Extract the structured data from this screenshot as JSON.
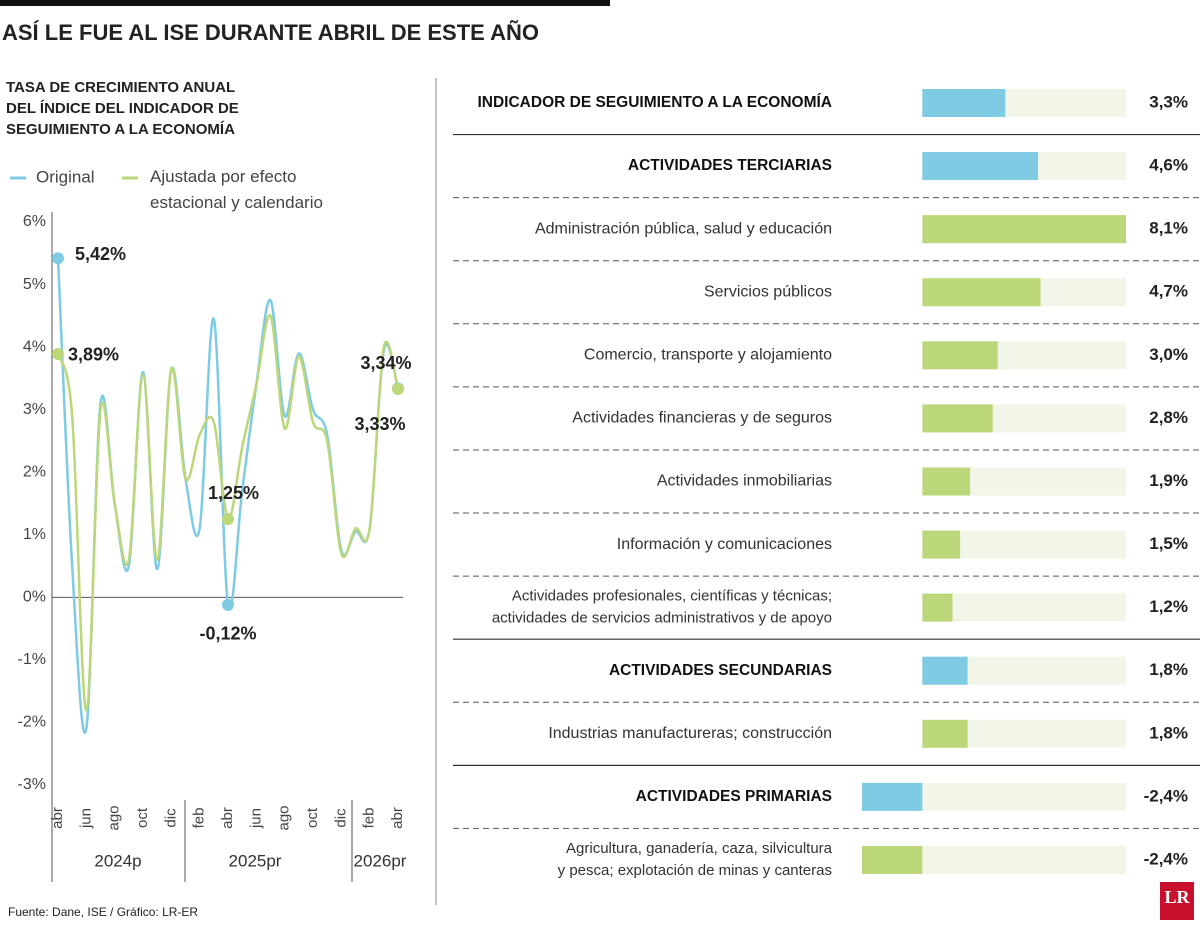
{
  "title": "ASÍ LE FUE AL ISE DURANTE ABRIL DE ESTE AÑO",
  "source": "Fuente: Dane, ISE / Gráfico: LR-ER",
  "logo": "LR",
  "chart_data": [
    {
      "type": "line",
      "title": "TASA DE CRECIMIENTO ANUAL\nDEL ÍNDICE DEL INDICADOR DE\nSEGUIMIENTO A LA ECONOMÍA",
      "categories": [
        "abr",
        null,
        "jun",
        null,
        "ago",
        null,
        "oct",
        null,
        "dic",
        null,
        "feb",
        null,
        "abr",
        null,
        "jun",
        null,
        "ago",
        null,
        "oct",
        null,
        "dic",
        null,
        "feb",
        null,
        "abr"
      ],
      "x_groups": [
        "2024p",
        "2025pr",
        "2026pr"
      ],
      "series": [
        {
          "name": "Original",
          "color": "#7ecbe3",
          "values": [
            5.42,
            0.5,
            -2.1,
            3.1,
            1.5,
            0.5,
            3.6,
            0.45,
            3.65,
            1.9,
            1.1,
            4.45,
            -0.12,
            1.7,
            3.4,
            4.75,
            2.9,
            3.9,
            3.0,
            2.6,
            0.75,
            1.05,
            1.1,
            3.95,
            3.34
          ],
          "value_labels": [
            "5,42%",
            null,
            null,
            null,
            null,
            null,
            null,
            null,
            null,
            null,
            null,
            null,
            "-0,12%",
            null,
            null,
            null,
            null,
            null,
            null,
            null,
            null,
            null,
            null,
            null,
            "3,34%"
          ]
        },
        {
          "name": "Ajustada por efecto\nestacional y calendario",
          "color": "#bcd67a",
          "values": [
            3.89,
            2.9,
            -1.8,
            3.0,
            1.5,
            0.6,
            3.55,
            0.6,
            3.65,
            1.9,
            2.6,
            2.8,
            1.25,
            2.4,
            3.4,
            4.5,
            2.7,
            3.85,
            2.8,
            2.5,
            0.7,
            1.1,
            1.1,
            4.0,
            3.33
          ],
          "value_labels": [
            "3,89%",
            null,
            null,
            null,
            null,
            null,
            null,
            null,
            null,
            null,
            null,
            null,
            "1,25%",
            null,
            null,
            null,
            null,
            null,
            null,
            null,
            null,
            null,
            null,
            null,
            "3,33%"
          ]
        }
      ],
      "ylim": [
        -3,
        6
      ],
      "yticks": [
        {
          "value": -3,
          "label": "-3%"
        },
        {
          "value": -2,
          "label": "-2%"
        },
        {
          "value": -1,
          "label": "-1%"
        },
        {
          "value": 0,
          "label": "0%"
        },
        {
          "value": 1,
          "label": "1%"
        },
        {
          "value": 2,
          "label": "2%"
        },
        {
          "value": 3,
          "label": "3%"
        },
        {
          "value": 4,
          "label": "4%"
        },
        {
          "value": 5,
          "label": "5%"
        },
        {
          "value": 6,
          "label": "6%"
        }
      ]
    },
    {
      "type": "hbar",
      "categories": [
        "INDICADOR DE SEGUIMIENTO A LA ECONOMÍA",
        "ACTIVIDADES TERCIARIAS",
        "Administración pública, salud y educación",
        "Servicios públicos",
        "Comercio, transporte y alojamiento",
        "Actividades financieras y de seguros",
        "Actividades inmobiliarias",
        "Información y comunicaciones",
        "Actividades profesionales, científicas y técnicas;\nactividades de servicios administrativos y de apoyo",
        "ACTIVIDADES SECUNDARIAS",
        "Industrias manufactureras; construcción",
        "ACTIVIDADES PRIMARIAS",
        "Agricultura, ganadería, caza, silvicultura\ny pesca; explotación de minas y canteras"
      ],
      "values": [
        3.3,
        4.6,
        8.1,
        4.7,
        3.0,
        2.8,
        1.9,
        1.5,
        1.2,
        1.8,
        1.8,
        -2.4,
        -2.4
      ],
      "value_labels": [
        "3,3%",
        "4,6%",
        "8,1%",
        "4,7%",
        "3,0%",
        "2,8%",
        "1,9%",
        "1,5%",
        "1,2%",
        "1,8%",
        "1,8%",
        "-2,4%",
        "-2,4%"
      ],
      "colors": [
        "#7ecbe3",
        "#7ecbe3",
        "#bcd67a",
        "#bcd67a",
        "#bcd67a",
        "#bcd67a",
        "#bcd67a",
        "#bcd67a",
        "#bcd67a",
        "#7ecbe3",
        "#bcd67a",
        "#7ecbe3",
        "#bcd67a"
      ],
      "xlim": [
        -2.4,
        8.1
      ]
    }
  ]
}
